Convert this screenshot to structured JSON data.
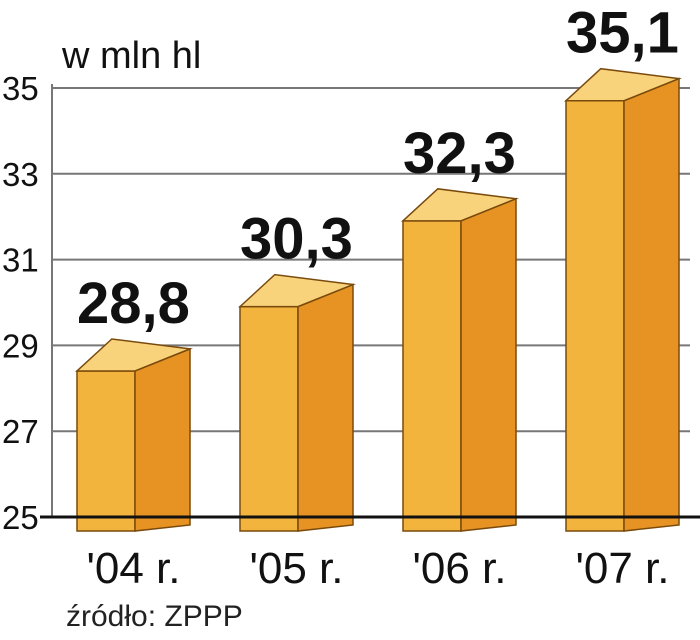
{
  "chart_data": {
    "type": "bar",
    "style": "3d-column",
    "unit_label": "w mln hl",
    "categories": [
      "'04 r.",
      "'05 r.",
      "'06 r.",
      "'07 r."
    ],
    "values": [
      28.8,
      30.3,
      32.3,
      35.1
    ],
    "value_labels": [
      "28,8",
      "30,3",
      "32,3",
      "35,1"
    ],
    "yticks": [
      "25",
      "27",
      "29",
      "31",
      "33",
      "35"
    ],
    "ytick_values": [
      25,
      27,
      29,
      31,
      33,
      35
    ],
    "ylim": [
      25,
      35
    ],
    "grid": true,
    "source": "źródło: ZPPP",
    "colors": {
      "front": "#F3B43E",
      "side": "#E69323",
      "top": "#F9D37C",
      "edge": "#7A4A0C",
      "grid": "#777777",
      "baseline": "#111111",
      "background": "#FFFFFF"
    }
  }
}
